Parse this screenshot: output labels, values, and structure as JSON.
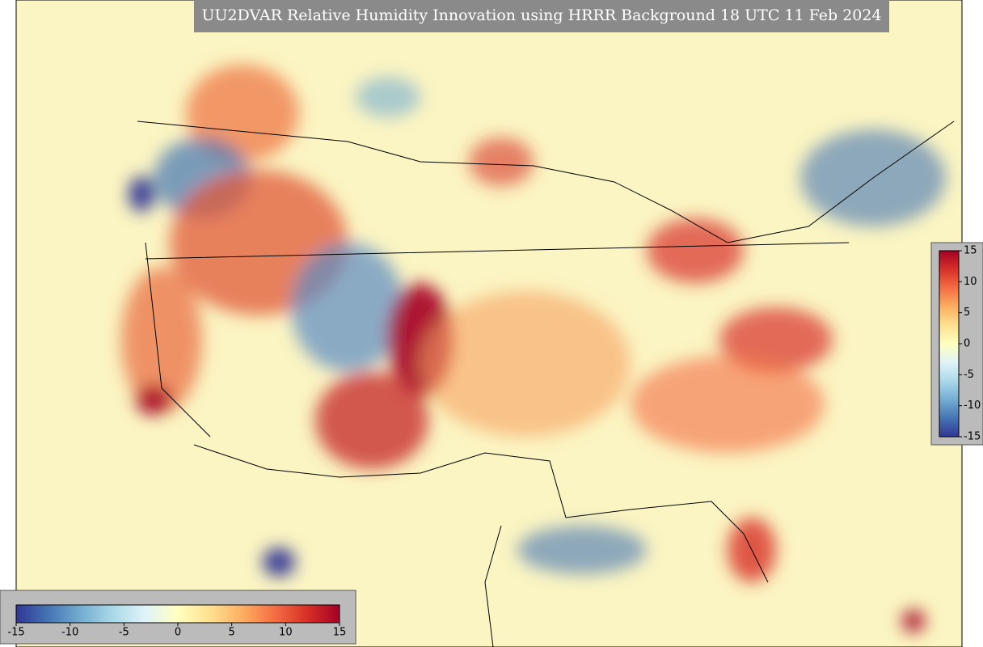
{
  "title": "UU2DVAR Relative Humidity Innovation using HRRR Background 18 UTC 11 Feb 2024",
  "colormap": [
    "#313695",
    "#4575b4",
    "#74add1",
    "#abd9e9",
    "#e0f3f8",
    "#ffffbf",
    "#fee090",
    "#fdae61",
    "#f46d43",
    "#d73027",
    "#a50026"
  ],
  "colorbar_horizontal": {
    "range": [
      -15,
      15
    ],
    "ticks": [
      -15,
      -10,
      -5,
      0,
      5,
      10,
      15
    ]
  },
  "colorbar_vertical": {
    "range": [
      -15,
      15
    ],
    "ticks": [
      -15,
      -10,
      -5,
      0,
      5,
      10,
      15
    ]
  }
}
